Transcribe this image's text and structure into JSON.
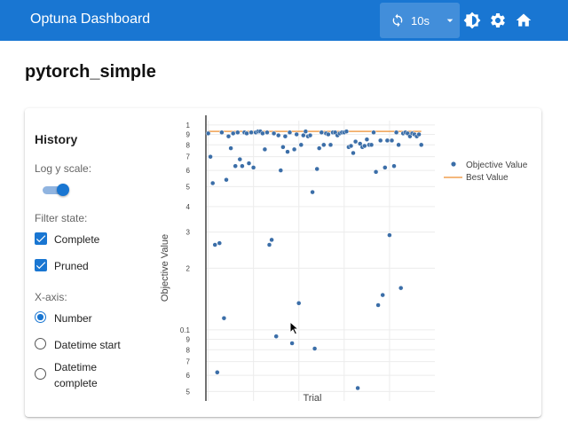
{
  "header": {
    "title": "Optuna Dashboard",
    "refresh_interval": "10s",
    "icons": [
      "refresh-icon",
      "chevron-down-icon",
      "brightness-icon",
      "gear-icon",
      "home-icon"
    ]
  },
  "page": {
    "title": "pytorch_simple"
  },
  "history": {
    "heading": "History",
    "log_scale_label": "Log y scale:",
    "log_scale_on": true,
    "filter_label": "Filter state:",
    "filters": [
      {
        "label": "Complete",
        "checked": true
      },
      {
        "label": "Pruned",
        "checked": true
      }
    ],
    "xaxis_label": "X-axis:",
    "xaxis_options": [
      {
        "label": "Number",
        "selected": true
      },
      {
        "label": "Datetime start",
        "selected": false
      },
      {
        "label": "Datetime complete",
        "line2": "complete",
        "selected": false
      }
    ]
  },
  "colors": {
    "primary": "#1976d2",
    "objective": "#3b6ea8",
    "best": "#f0a050"
  },
  "chart_data": {
    "type": "scatter",
    "xlabel": "Trial",
    "ylabel": "Objective Value",
    "y_scale": "log",
    "ylim": [
      0.045,
      1.05
    ],
    "xlim": [
      -1,
      100
    ],
    "y_ticks": [
      {
        "v": 1,
        "t": "1"
      },
      {
        "v": 0.9,
        "t": "9"
      },
      {
        "v": 0.8,
        "t": "8"
      },
      {
        "v": 0.7,
        "t": "7"
      },
      {
        "v": 0.6,
        "t": "6"
      },
      {
        "v": 0.5,
        "t": "5"
      },
      {
        "v": 0.4,
        "t": "4"
      },
      {
        "v": 0.3,
        "t": "3"
      },
      {
        "v": 0.2,
        "t": "2"
      },
      {
        "v": 0.1,
        "t": "0.1"
      },
      {
        "v": 0.09,
        "t": "9"
      },
      {
        "v": 0.08,
        "t": "8"
      },
      {
        "v": 0.07,
        "t": "7"
      },
      {
        "v": 0.06,
        "t": "6"
      },
      {
        "v": 0.05,
        "t": "5"
      }
    ],
    "legend": [
      {
        "name": "Objective Value",
        "kind": "marker"
      },
      {
        "name": "Best Value",
        "kind": "line"
      }
    ],
    "legend_position": "top-right",
    "series": [
      {
        "name": "Objective Value",
        "points": [
          [
            0,
            0.91
          ],
          [
            1,
            0.7
          ],
          [
            2,
            0.52
          ],
          [
            3,
            0.26
          ],
          [
            4,
            0.062
          ],
          [
            5,
            0.265
          ],
          [
            6,
            0.92
          ],
          [
            7,
            0.114
          ],
          [
            8,
            0.54
          ],
          [
            9,
            0.88
          ],
          [
            10,
            0.77
          ],
          [
            11,
            0.91
          ],
          [
            12,
            0.63
          ],
          [
            13,
            0.92
          ],
          [
            14,
            0.68
          ],
          [
            15,
            0.63
          ],
          [
            16,
            0.92
          ],
          [
            17,
            0.91
          ],
          [
            18,
            0.65
          ],
          [
            19,
            0.92
          ],
          [
            20,
            0.62
          ],
          [
            21,
            0.92
          ],
          [
            22,
            0.93
          ],
          [
            23,
            0.93
          ],
          [
            24,
            0.91
          ],
          [
            25,
            0.76
          ],
          [
            26,
            0.92
          ],
          [
            27,
            0.26
          ],
          [
            28,
            0.275
          ],
          [
            29,
            0.91
          ],
          [
            30,
            0.093
          ],
          [
            31,
            0.89
          ],
          [
            32,
            0.6
          ],
          [
            33,
            0.78
          ],
          [
            34,
            0.88
          ],
          [
            35,
            0.74
          ],
          [
            36,
            0.92
          ],
          [
            37,
            0.086
          ],
          [
            38,
            0.76
          ],
          [
            39,
            0.9
          ],
          [
            40,
            0.135
          ],
          [
            41,
            0.8
          ],
          [
            42,
            0.89
          ],
          [
            43,
            0.93
          ],
          [
            44,
            0.88
          ],
          [
            45,
            0.89
          ],
          [
            46,
            0.47
          ],
          [
            47,
            0.081
          ],
          [
            48,
            0.61
          ],
          [
            49,
            0.77
          ],
          [
            50,
            0.92
          ],
          [
            51,
            0.8
          ],
          [
            52,
            0.91
          ],
          [
            53,
            0.9
          ],
          [
            54,
            0.8
          ],
          [
            55,
            0.92
          ],
          [
            56,
            0.92
          ],
          [
            57,
            0.89
          ],
          [
            58,
            0.91
          ],
          [
            59,
            0.92
          ],
          [
            60,
            0.92
          ],
          [
            61,
            0.93
          ],
          [
            62,
            0.78
          ],
          [
            63,
            0.79
          ],
          [
            64,
            0.73
          ],
          [
            65,
            0.83
          ],
          [
            66,
            0.052
          ],
          [
            67,
            0.81
          ],
          [
            68,
            0.78
          ],
          [
            69,
            0.79
          ],
          [
            70,
            0.85
          ],
          [
            71,
            0.8
          ],
          [
            72,
            0.8
          ],
          [
            73,
            0.92
          ],
          [
            74,
            0.59
          ],
          [
            75,
            0.132
          ],
          [
            76,
            0.84
          ],
          [
            77,
            0.148
          ],
          [
            78,
            0.62
          ],
          [
            79,
            0.84
          ],
          [
            80,
            0.29
          ],
          [
            81,
            0.84
          ],
          [
            82,
            0.63
          ],
          [
            83,
            0.92
          ],
          [
            84,
            0.8
          ],
          [
            85,
            0.16
          ],
          [
            86,
            0.91
          ],
          [
            87,
            0.92
          ],
          [
            88,
            0.91
          ],
          [
            89,
            0.88
          ],
          [
            90,
            0.91
          ],
          [
            91,
            0.9
          ],
          [
            92,
            0.88
          ],
          [
            93,
            0.9
          ],
          [
            94,
            0.8
          ]
        ]
      },
      {
        "name": "Best Value",
        "value": 0.93
      }
    ]
  }
}
